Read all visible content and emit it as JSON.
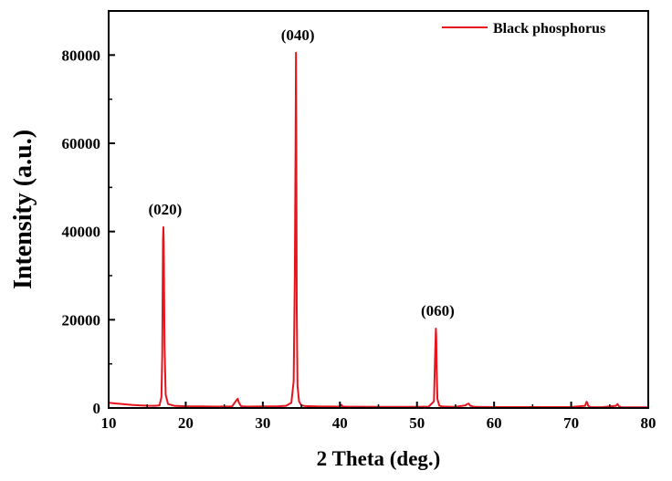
{
  "chart_data": {
    "type": "line",
    "title": "",
    "xlabel": "2 Theta (deg.)",
    "ylabel": "Intensity (a.u.)",
    "xlim": [
      10,
      80
    ],
    "ylim": [
      0,
      90000
    ],
    "x_ticks": [
      10,
      20,
      30,
      40,
      50,
      60,
      70,
      80
    ],
    "y_ticks": [
      0,
      20000,
      40000,
      60000,
      80000
    ],
    "legend_position": "top-right",
    "grid": false,
    "series": [
      {
        "name": "Black phosphorus",
        "color": "#e8141c",
        "x": [
          10,
          11,
          12,
          13,
          14,
          15,
          16,
          16.6,
          16.85,
          16.95,
          17.05,
          17.1,
          17.15,
          17.25,
          17.4,
          17.7,
          18.5,
          20,
          22,
          24,
          26,
          26.6,
          26.75,
          26.9,
          27.2,
          28,
          30,
          31,
          32,
          33,
          33.7,
          34.0,
          34.15,
          34.25,
          34.3,
          34.35,
          34.4,
          34.5,
          34.7,
          35.0,
          35.5,
          37,
          40,
          40.2,
          40.3,
          40.5,
          42,
          45,
          48,
          50,
          51.5,
          52.2,
          52.35,
          52.45,
          52.5,
          52.55,
          52.65,
          52.9,
          53.5,
          55,
          56.3,
          56.5,
          56.7,
          56.9,
          57.5,
          60,
          65,
          70,
          71.8,
          72.0,
          72.1,
          72.2,
          72.5,
          74,
          75.8,
          76.0,
          76.2,
          76.5,
          78,
          80
        ],
        "y": [
          1200,
          1000,
          850,
          700,
          600,
          520,
          480,
          600,
          2500,
          12000,
          38000,
          41000,
          37000,
          14000,
          3000,
          900,
          500,
          400,
          350,
          320,
          350,
          1800,
          2100,
          1200,
          380,
          320,
          350,
          360,
          380,
          500,
          1200,
          6000,
          30000,
          60000,
          80500,
          58000,
          22000,
          5000,
          1500,
          600,
          450,
          350,
          320,
          700,
          400,
          300,
          280,
          270,
          260,
          260,
          300,
          1500,
          12000,
          18000,
          16000,
          9000,
          2000,
          500,
          300,
          250,
          600,
          900,
          1000,
          500,
          250,
          220,
          200,
          200,
          500,
          1400,
          1200,
          500,
          200,
          180,
          500,
          900,
          400,
          180,
          150,
          150
        ]
      }
    ],
    "annotations": [
      {
        "text": "(020)",
        "x": 17.1,
        "y": 41000
      },
      {
        "text": "(040)",
        "x": 34.3,
        "y": 80500
      },
      {
        "text": "(060)",
        "x": 52.45,
        "y": 18000
      }
    ]
  }
}
